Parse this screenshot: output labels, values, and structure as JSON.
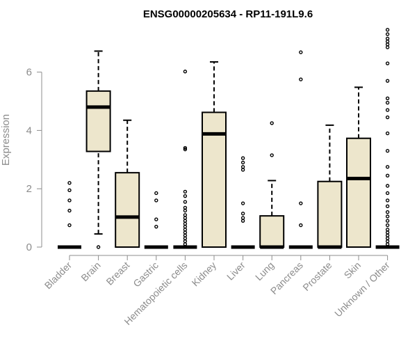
{
  "chart_data": {
    "type": "boxplot",
    "title": "ENSG00000205634 - RP11-191L9.6",
    "xlabel": "",
    "ylabel": "Expression",
    "ylim": [
      0,
      7.5
    ],
    "yticks": [
      0,
      2,
      4,
      6
    ],
    "grid": false,
    "box_fill": "#ede6cc",
    "box_stroke": "#000000",
    "categories": [
      "Bladder",
      "Brain",
      "Breast",
      "Gastric",
      "Hematopoietic cells",
      "Kidney",
      "Liver",
      "Lung",
      "Pancreas",
      "Prostate",
      "Skin",
      "Unknown / Other"
    ],
    "boxes": [
      {
        "category": "Bladder",
        "min": 0,
        "q1": 0,
        "median": 0,
        "q3": 0,
        "max": 0,
        "outliers": [
          2.2,
          1.95,
          1.6,
          1.25,
          0.75
        ]
      },
      {
        "category": "Brain",
        "min": 0.45,
        "q1": 3.28,
        "median": 4.8,
        "q3": 5.35,
        "max": 6.72,
        "outliers": [
          0
        ]
      },
      {
        "category": "Breast",
        "min": 0,
        "q1": 0,
        "median": 1.03,
        "q3": 2.55,
        "max": 4.35,
        "outliers": []
      },
      {
        "category": "Gastric",
        "min": 0,
        "q1": 0,
        "median": 0,
        "q3": 0,
        "max": 0,
        "outliers": [
          1.85,
          1.6,
          0.95,
          0.7
        ]
      },
      {
        "category": "Hematopoietic cells",
        "min": 0,
        "q1": 0,
        "median": 0,
        "q3": 0,
        "max": 0,
        "outliers": [
          6.02,
          3.4,
          3.35,
          1.9,
          1.75,
          1.55,
          1.35,
          1.25,
          1.1,
          1.0,
          0.9,
          0.8,
          0.7,
          0.6,
          0.5,
          0.4,
          0.3,
          0.2,
          0.1
        ]
      },
      {
        "category": "Kidney",
        "min": 0,
        "q1": 0,
        "median": 3.88,
        "q3": 4.62,
        "max": 6.35,
        "outliers": []
      },
      {
        "category": "Liver",
        "min": 0,
        "q1": 0,
        "median": 0,
        "q3": 0,
        "max": 0,
        "outliers": [
          3.05,
          2.9,
          2.75,
          2.65,
          1.5,
          1.15,
          1.0,
          0.9
        ]
      },
      {
        "category": "Lung",
        "min": 0,
        "q1": 0,
        "median": 0,
        "q3": 1.07,
        "max": 2.28,
        "outliers": [
          4.25,
          3.15
        ]
      },
      {
        "category": "Pancreas",
        "min": 0,
        "q1": 0,
        "median": 0,
        "q3": 0,
        "max": 0,
        "outliers": [
          6.68,
          5.75,
          1.5,
          0.75
        ]
      },
      {
        "category": "Prostate",
        "min": 0,
        "q1": 0,
        "median": 0,
        "q3": 2.25,
        "max": 4.18,
        "outliers": []
      },
      {
        "category": "Skin",
        "min": 0,
        "q1": 0,
        "median": 2.35,
        "q3": 3.73,
        "max": 5.48,
        "outliers": []
      },
      {
        "category": "Unknown / Other",
        "min": 0,
        "q1": 0,
        "median": 0,
        "q3": 0,
        "max": 0,
        "outliers": [
          7.45,
          7.3,
          7.15,
          7.05,
          6.95,
          6.85,
          6.3,
          5.7,
          5.1,
          4.95,
          4.7,
          4.45,
          3.9,
          3.3,
          2.75,
          2.45,
          2.1,
          1.85,
          1.6,
          1.4,
          1.2,
          1.05,
          0.9,
          0.75,
          0.6,
          0.5,
          0.4,
          0.3,
          0.2,
          0.1
        ]
      }
    ]
  }
}
